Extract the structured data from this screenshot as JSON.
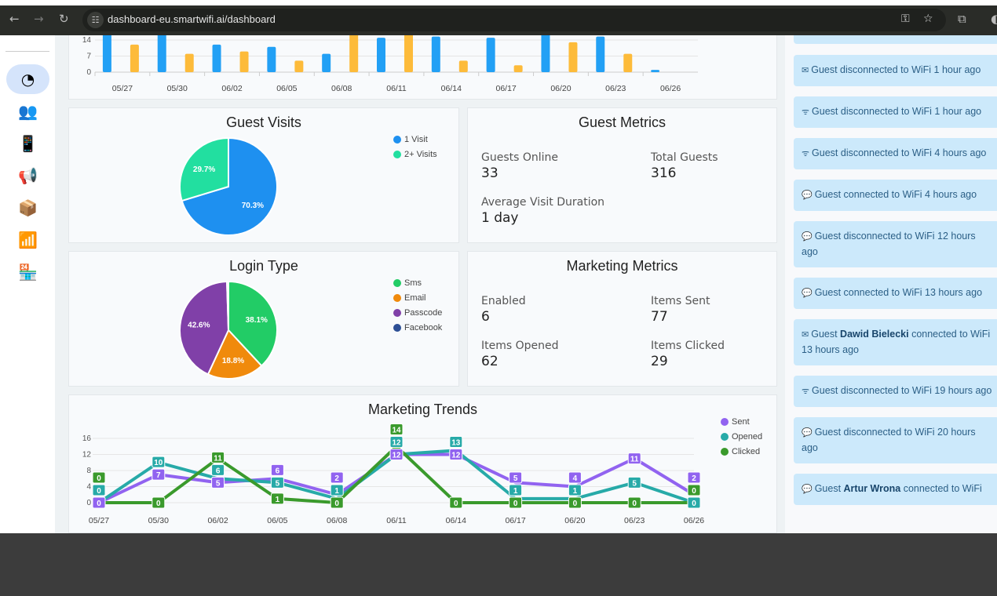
{
  "browser": {
    "url": "dashboard-eu.smartwifi.ai/dashboard"
  },
  "sidebar": {
    "items": [
      {
        "name": "dashboard",
        "icon": "pie-chart-icon",
        "glyph": "◔",
        "active": true
      },
      {
        "name": "guests",
        "icon": "users-icon",
        "glyph": "👥"
      },
      {
        "name": "portal",
        "icon": "phone-icon",
        "glyph": "📱"
      },
      {
        "name": "marketing",
        "icon": "megaphone-icon",
        "glyph": "📢"
      },
      {
        "name": "products",
        "icon": "box-add-icon",
        "glyph": "📦"
      },
      {
        "name": "wifi-settings",
        "icon": "wifi-gear-icon",
        "glyph": "📶"
      },
      {
        "name": "venue-info",
        "icon": "store-info-icon",
        "glyph": "🏪"
      }
    ]
  },
  "chart_data": [
    {
      "type": "bar",
      "categories": [
        "05/27",
        "05/30",
        "06/02",
        "06/05",
        "06/08",
        "06/11",
        "06/14",
        "06/17",
        "06/20",
        "06/23",
        "06/26"
      ],
      "yticks": [
        0,
        7,
        14
      ],
      "series": [
        {
          "values": [
            18,
            17,
            12,
            11,
            8,
            15,
            15.5,
            15,
            17,
            15.5,
            1
          ],
          "color": "#22a0f5"
        },
        {
          "values": [
            12,
            8,
            9,
            5,
            17,
            17,
            5,
            3,
            13,
            8,
            0
          ],
          "color": "#fdbb3a"
        }
      ]
    },
    {
      "type": "pie",
      "title": "Guest Visits",
      "labels": [
        "1 Visit",
        "2+ Visits"
      ],
      "values": [
        70.3,
        29.7
      ],
      "value_labels": [
        "70.3%",
        "29.7%"
      ],
      "colors": [
        "#1e90f0",
        "#22dfa0"
      ],
      "legend": "top-right"
    },
    {
      "type": "pie",
      "title": "Login Type",
      "labels": [
        "Sms",
        "Email",
        "Passcode",
        "Facebook"
      ],
      "values": [
        38.1,
        18.8,
        42.6,
        0.5
      ],
      "value_labels": [
        "38.1%",
        "18.8%",
        "42.6%",
        ""
      ],
      "colors": [
        "#22cc66",
        "#f08a0c",
        "#8040a8",
        "#2d4f95"
      ],
      "legend": "top-right"
    },
    {
      "type": "line",
      "title": "Marketing Trends",
      "categories": [
        "05/27",
        "05/30",
        "06/02",
        "06/05",
        "06/08",
        "06/11",
        "06/14",
        "06/17",
        "06/20",
        "06/23",
        "06/26"
      ],
      "yticks": [
        0,
        4,
        8,
        12,
        16
      ],
      "ylim": [
        0,
        16
      ],
      "legend": "top-right",
      "series": [
        {
          "name": "Sent",
          "values": [
            0,
            7,
            5,
            6,
            2,
            12,
            12,
            5,
            4,
            11,
            2
          ],
          "color": "#9163f0"
        },
        {
          "name": "Opened",
          "values": [
            0,
            10,
            6,
            5,
            1,
            12,
            13,
            1,
            1,
            5,
            0
          ],
          "color": "#27aaa8"
        },
        {
          "name": "Clicked",
          "values": [
            0,
            0,
            11,
            1,
            0,
            14,
            0,
            0,
            0,
            0,
            0
          ],
          "color": "#3a9a2c"
        }
      ]
    }
  ],
  "guest_metrics": {
    "title": "Guest Metrics",
    "items": [
      {
        "label": "Guests Online",
        "value": "33"
      },
      {
        "label": "Total Guests",
        "value": "316"
      },
      {
        "label": "Average Visit Duration",
        "value": "1 day"
      }
    ]
  },
  "marketing_metrics": {
    "title": "Marketing Metrics",
    "items": [
      {
        "label": "Enabled",
        "value": "6"
      },
      {
        "label": "Items Sent",
        "value": "77"
      },
      {
        "label": "Items Opened",
        "value": "62"
      },
      {
        "label": "Items Clicked",
        "value": "29"
      }
    ]
  },
  "feed": [
    {
      "icon": "mail-icon",
      "glyph": "✉",
      "pre": "Guest disconnected to WiFi 1 hour ago",
      "name": "",
      "post": ""
    },
    {
      "icon": "wifi-icon",
      "glyph": "ᯤ",
      "pre": "Guest disconnected to WiFi 1 hour ago",
      "name": "",
      "post": ""
    },
    {
      "icon": "wifi-icon",
      "glyph": "ᯤ",
      "pre": "Guest disconnected to WiFi 4 hours ago",
      "name": "",
      "post": ""
    },
    {
      "icon": "chat-icon",
      "glyph": "💬",
      "pre": "Guest connected to WiFi 4 hours ago",
      "name": "",
      "post": ""
    },
    {
      "icon": "chat-icon",
      "glyph": "💬",
      "pre": "Guest disconnected to WiFi 12 hours ago",
      "name": "",
      "post": ""
    },
    {
      "icon": "chat-icon",
      "glyph": "💬",
      "pre": "Guest connected to WiFi 13 hours ago",
      "name": "",
      "post": ""
    },
    {
      "icon": "mail-icon",
      "glyph": "✉",
      "pre": "Guest ",
      "name": "Dawid Bielecki",
      "post": " connected to WiFi 13 hours ago"
    },
    {
      "icon": "wifi-icon",
      "glyph": "ᯤ",
      "pre": "Guest disconnected to WiFi 19 hours ago",
      "name": "",
      "post": ""
    },
    {
      "icon": "chat-icon",
      "glyph": "💬",
      "pre": "Guest disconnected to WiFi 20 hours ago",
      "name": "",
      "post": ""
    },
    {
      "icon": "chat-icon",
      "glyph": "💬",
      "pre": "Guest ",
      "name": "Artur Wrona",
      "post": " connected to WiFi"
    }
  ]
}
